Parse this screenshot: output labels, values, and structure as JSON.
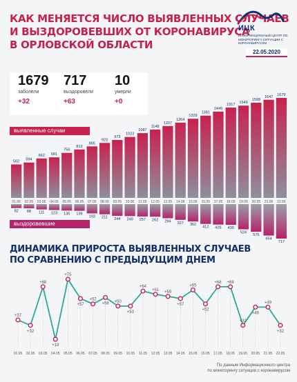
{
  "title_lines": [
    "КАК МЕНЯЕТСЯ ЧИСЛО ВЫЯВЛЕННЫХ СЛУЧАЕВ",
    "И ВЫЗДОРОВЕВШИХ ОТ КОРОНАВИРУСА",
    "В ОРЛОВСКОЙ ОБЛАСТИ"
  ],
  "logo": {
    "name": "ИЦК",
    "subtitle": "ИНФОРМАЦИОННЫЙ ЦЕНТР ПО МОНИТОРИНГУ СИТУАЦИИ С КОРОНАВИРУСОМ"
  },
  "date": "22.05.2020",
  "stats": [
    {
      "value": "1679",
      "label": "заболели",
      "delta": "+32"
    },
    {
      "value": "717",
      "label": "выздоровели",
      "delta": "+63"
    },
    {
      "value": "10",
      "label": "умерли",
      "delta": "+0"
    }
  ],
  "labels": {
    "cases": "выявленные случаи",
    "recovered": "выздоровевшие"
  },
  "subtitle_lines": [
    "ДИНАМИКА ПРИРОСТА ВЫЯВЛЕННЫХ СЛУЧАЕВ",
    "ПО СРАВНЕНИЮ С ПРЕДЫДУЩИМ ДНЕМ"
  ],
  "source_lines": [
    "По данным Информационного центра",
    "по мониторингу ситуации с коронавирусом"
  ],
  "chart_data": [
    {
      "type": "bar",
      "categories": [
        "01.05",
        "02.05",
        "03.05",
        "04.05",
        "05.05",
        "06.05",
        "07.05",
        "08.05",
        "09.05",
        "10.05",
        "11.05",
        "12.05",
        "13.05",
        "14.05",
        "15.05",
        "16.05",
        "17.05",
        "18.05",
        "19.05",
        "20.05",
        "21.05",
        "22.05"
      ],
      "series": [
        {
          "name": "выявленные случаи",
          "values": [
            562,
            594,
            662,
            681,
            756,
            813,
            865,
            923,
            973,
            1023,
            1087,
            1148,
            1207,
            1264,
            1329,
            1381,
            1449,
            1517,
            1549,
            1598,
            1647,
            1679
          ]
        },
        {
          "name": "выздоровевшие",
          "values": [
            82,
            88,
            111,
            123,
            135,
            139,
            193,
            211,
            244,
            249,
            257,
            262,
            294,
            327,
            362,
            412,
            426,
            430,
            524,
            576,
            654,
            717
          ]
        }
      ]
    },
    {
      "type": "line",
      "title": "ДИНАМИКА ПРИРОСТА ВЫЯВЛЕННЫХ СЛУЧАЕВ ПО СРАВНЕНИЮ С ПРЕДЫДУЩИМ ДНЕМ",
      "categories": [
        "01.05",
        "02.05",
        "03.05",
        "04.05",
        "05.05",
        "06.05",
        "07.05",
        "08.05",
        "09.05",
        "10.05",
        "11.05",
        "12.05",
        "13.05",
        "14.05",
        "15.05",
        "16.05",
        "17.05",
        "18.05",
        "19.05",
        "20.05",
        "21.05",
        "22.05"
      ],
      "values": [
        37,
        32,
        68,
        19,
        75,
        57,
        52,
        58,
        50,
        50,
        64,
        61,
        59,
        57,
        65,
        52,
        68,
        68,
        32,
        49,
        49,
        32
      ],
      "labels": [
        "+37",
        "+32",
        "+68",
        "+19",
        "+75",
        "+57",
        "+52",
        "+58",
        "+50",
        "+50",
        "+64",
        "+61",
        "+59",
        "+57",
        "+65",
        "+52",
        "+68",
        "+68",
        "+32",
        "+49",
        "+49",
        "+32"
      ]
    }
  ],
  "colors": {
    "accent": "#c7224e",
    "navy": "#0e2f6b",
    "teal": "#2aa79b",
    "bar_top": "#c7224e",
    "bar_bottom": "#8c8f9a",
    "rec": "#b5236a"
  }
}
